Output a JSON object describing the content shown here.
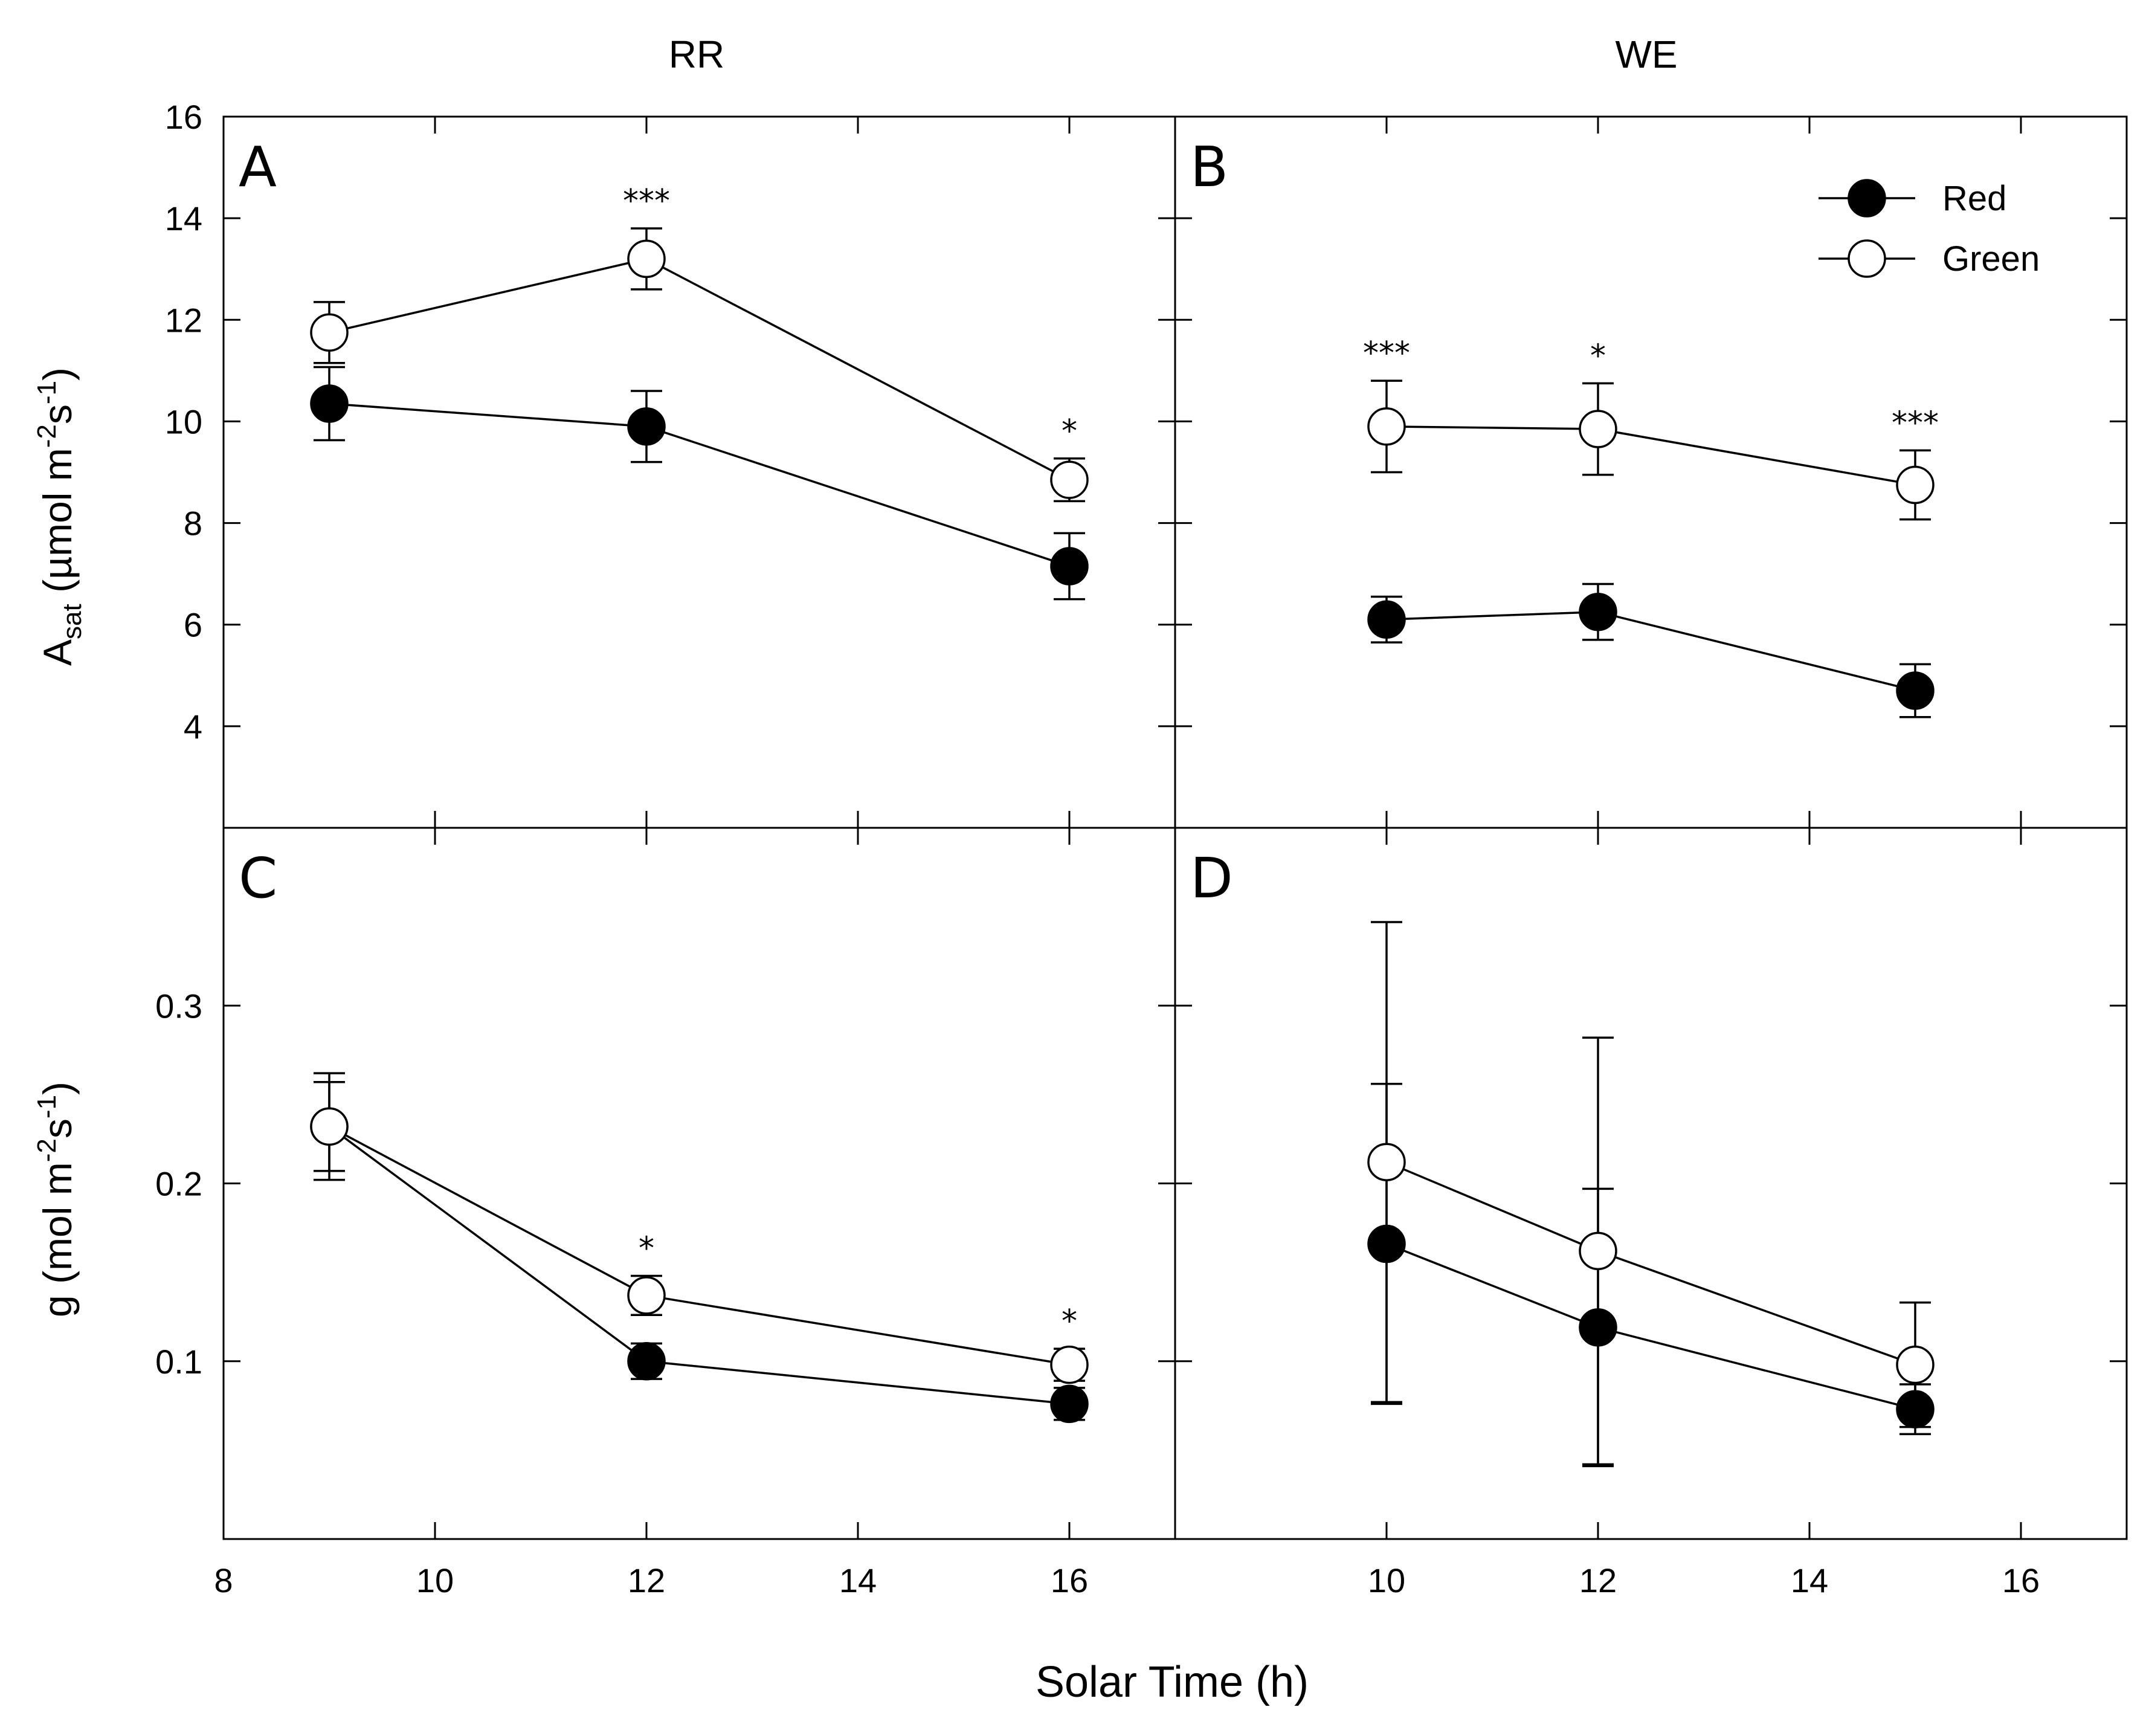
{
  "chart_data": {
    "type": "line",
    "column_labels": [
      "RR",
      "WE"
    ],
    "xlabel": "Solar Time (h)",
    "x_ticks_left": [
      "8",
      "10",
      "12",
      "14",
      "16"
    ],
    "x_ticks_right": [
      "10",
      "12",
      "14",
      "16"
    ],
    "ylabel_top": {
      "main": "A",
      "sub": "sat",
      "rest": " (µmol m",
      "sup1": "-2",
      "mid": "s",
      "sup2": "-1",
      "end": ")"
    },
    "ylabel_bottom": {
      "main": "g (mol m",
      "sup1": "-2",
      "mid": "s",
      "sup2": "-1",
      "end": ")"
    },
    "y_ticks_top": [
      "4",
      "6",
      "8",
      "10",
      "12",
      "14",
      "16"
    ],
    "y_ticks_bottom": [
      "0.1",
      "0.2",
      "0.3"
    ],
    "legend": [
      {
        "name": "Red",
        "fill": "#000000"
      },
      {
        "name": "Green",
        "fill": "#ffffff"
      }
    ],
    "panels": [
      {
        "letter": "A",
        "column": "RR",
        "xlim": [
          8,
          17
        ],
        "ylim": [
          2,
          16
        ],
        "series": [
          {
            "name": "Red",
            "x": [
              9,
              12,
              16
            ],
            "y": [
              10.35,
              9.9,
              7.15
            ],
            "err": [
              0.72,
              0.7,
              0.65
            ]
          },
          {
            "name": "Green",
            "x": [
              9,
              12,
              16
            ],
            "y": [
              11.75,
              13.2,
              8.85
            ],
            "err": [
              0.6,
              0.6,
              0.42
            ]
          }
        ],
        "significance": [
          {
            "x": 12,
            "label": "***"
          },
          {
            "x": 16,
            "label": "*"
          }
        ]
      },
      {
        "letter": "B",
        "column": "WE",
        "xlim": [
          8,
          17
        ],
        "ylim": [
          2,
          16
        ],
        "series": [
          {
            "name": "Red",
            "x": [
              10,
              12,
              15
            ],
            "y": [
              6.1,
              6.25,
              4.7
            ],
            "err": [
              0.45,
              0.55,
              0.52
            ]
          },
          {
            "name": "Green",
            "x": [
              10,
              12,
              15
            ],
            "y": [
              9.9,
              9.85,
              8.75
            ],
            "err": [
              0.9,
              0.9,
              0.68
            ]
          }
        ],
        "significance": [
          {
            "x": 10,
            "label": "***"
          },
          {
            "x": 12,
            "label": "*"
          },
          {
            "x": 15,
            "label": "***"
          }
        ]
      },
      {
        "letter": "C",
        "column": "RR",
        "xlim": [
          8,
          17
        ],
        "ylim": [
          0,
          0.4
        ],
        "series": [
          {
            "name": "Red",
            "x": [
              9,
              12,
              16
            ],
            "y": [
              0.232,
              0.1,
              0.076
            ],
            "err": [
              0.03,
              0.01,
              0.009
            ]
          },
          {
            "name": "Green",
            "x": [
              9,
              12,
              16
            ],
            "y": [
              0.232,
              0.137,
              0.098
            ],
            "err": [
              0.025,
              0.011,
              0.009
            ]
          }
        ],
        "significance": [
          {
            "x": 12,
            "label": "*"
          },
          {
            "x": 16,
            "label": "*"
          }
        ]
      },
      {
        "letter": "D",
        "column": "WE",
        "xlim": [
          8,
          17
        ],
        "ylim": [
          0,
          0.4
        ],
        "series": [
          {
            "name": "Red",
            "x": [
              10,
              12,
              15
            ],
            "y": [
              0.166,
              0.119,
              0.073
            ],
            "err": [
              0.09,
              0.078,
              0.014
            ]
          },
          {
            "name": "Green",
            "x": [
              10,
              12,
              15
            ],
            "y": [
              0.212,
              0.162,
              0.098
            ],
            "err": [
              0.135,
              0.12,
              0.035
            ]
          }
        ],
        "significance": []
      }
    ]
  }
}
